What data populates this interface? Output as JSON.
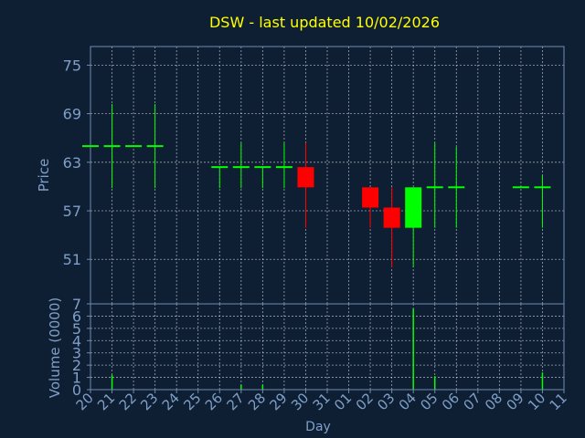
{
  "chart_data": {
    "type": "candlestick",
    "title": "DSW - last updated 10/02/2026",
    "xlabel": "Day",
    "ylabel_price": "Price",
    "ylabel_volume": "Volume (0000)",
    "price_ylim": [
      45.5,
      77.3
    ],
    "price_ticks": [
      51,
      57,
      63,
      69,
      75
    ],
    "volume_ylim": [
      0,
      7
    ],
    "volume_ticks": [
      0,
      1,
      2,
      3,
      4,
      5,
      6,
      7
    ],
    "x_tick_labels": [
      "20",
      "21",
      "22",
      "23",
      "24",
      "25",
      "26",
      "27",
      "28",
      "29",
      "30",
      "31",
      "01",
      "02",
      "03",
      "04",
      "05",
      "06",
      "07",
      "08",
      "09",
      "10",
      "11"
    ],
    "grid": true,
    "colors": {
      "background": "#0f1f33",
      "axis": "#6f8bb0",
      "grid": "#dcdcdc",
      "title": "#ffff00",
      "label": "#7f9fc8",
      "up": "#00ff00",
      "down": "#ff0000"
    },
    "candles": [
      {
        "day": 0,
        "open": 65,
        "high": 65,
        "low": 65,
        "close": 65
      },
      {
        "day": 1,
        "open": 65,
        "high": 70.2,
        "low": 59.8,
        "close": 65
      },
      {
        "day": 2,
        "open": 65,
        "high": 65,
        "low": 65,
        "close": 65
      },
      {
        "day": 3,
        "open": 65,
        "high": 70.2,
        "low": 59.8,
        "close": 65
      },
      {
        "day": 6,
        "open": 62.4,
        "high": 62.4,
        "low": 59.8,
        "close": 62.4
      },
      {
        "day": 7,
        "open": 62.4,
        "high": 65.4,
        "low": 59.8,
        "close": 62.4
      },
      {
        "day": 8,
        "open": 62.4,
        "high": 62.4,
        "low": 59.8,
        "close": 62.4
      },
      {
        "day": 9,
        "open": 62.4,
        "high": 65.4,
        "low": 59.8,
        "close": 62.4
      },
      {
        "day": 10,
        "open": 62.4,
        "high": 65.4,
        "low": 54.9,
        "close": 59.9
      },
      {
        "day": 13,
        "open": 59.9,
        "high": 59.9,
        "low": 54.9,
        "close": 57.4
      },
      {
        "day": 14,
        "open": 57.4,
        "high": 59.9,
        "low": 50,
        "close": 54.9
      },
      {
        "day": 15,
        "open": 54.9,
        "high": 59.9,
        "low": 50,
        "close": 59.9
      },
      {
        "day": 16,
        "open": 59.9,
        "high": 65.4,
        "low": 54.9,
        "close": 59.9
      },
      {
        "day": 17,
        "open": 59.9,
        "high": 64.9,
        "low": 54.9,
        "close": 59.9
      },
      {
        "day": 20,
        "open": 59.9,
        "high": 59.9,
        "low": 59.9,
        "close": 59.9
      },
      {
        "day": 21,
        "open": 59.9,
        "high": 61.4,
        "low": 54.9,
        "close": 59.9
      }
    ],
    "volume": [
      {
        "day": 1,
        "value": 1.2
      },
      {
        "day": 7,
        "value": 0.4
      },
      {
        "day": 8,
        "value": 0.4
      },
      {
        "day": 15,
        "value": 6.6
      },
      {
        "day": 16,
        "value": 1.1
      },
      {
        "day": 21,
        "value": 1.4
      }
    ]
  }
}
